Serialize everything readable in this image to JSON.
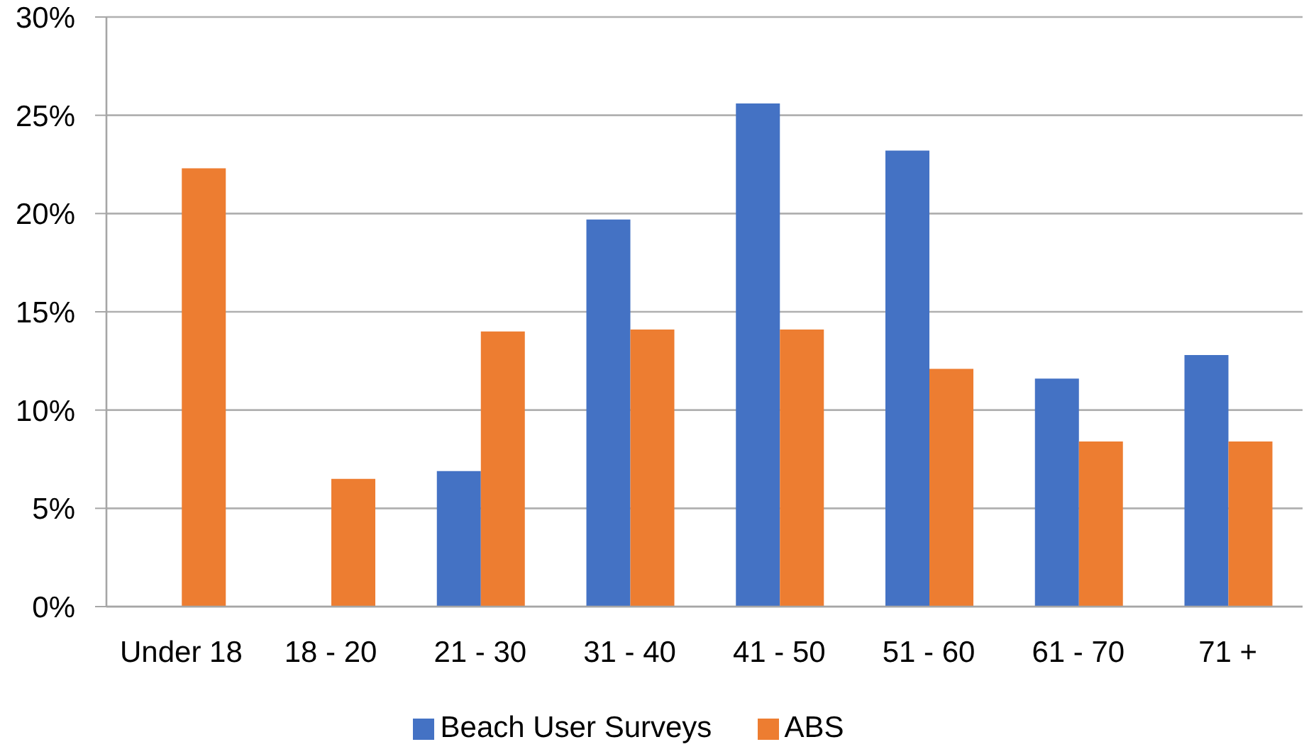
{
  "chart_data": {
    "type": "bar",
    "categories": [
      "Under 18",
      "18 - 20",
      "21 - 30",
      "31 - 40",
      "41 - 50",
      "51 - 60",
      "61 - 70",
      "71 +"
    ],
    "series": [
      {
        "name": "Beach User Surveys",
        "color": "#4472c4",
        "values": [
          null,
          null,
          6.9,
          19.7,
          25.6,
          23.2,
          11.6,
          12.8
        ]
      },
      {
        "name": "ABS",
        "color": "#ed7d31",
        "values": [
          22.3,
          6.5,
          14.0,
          14.1,
          14.1,
          12.1,
          8.4,
          8.4
        ]
      }
    ],
    "ylim": [
      0,
      30
    ],
    "yticks": [
      {
        "value": 0,
        "label": "0%"
      },
      {
        "value": 5,
        "label": "5%"
      },
      {
        "value": 10,
        "label": "10%"
      },
      {
        "value": 15,
        "label": "15%"
      },
      {
        "value": 20,
        "label": "20%"
      },
      {
        "value": 25,
        "label": "25%"
      },
      {
        "value": 30,
        "label": "30%"
      }
    ],
    "grid": "y",
    "legend": "bottom"
  }
}
